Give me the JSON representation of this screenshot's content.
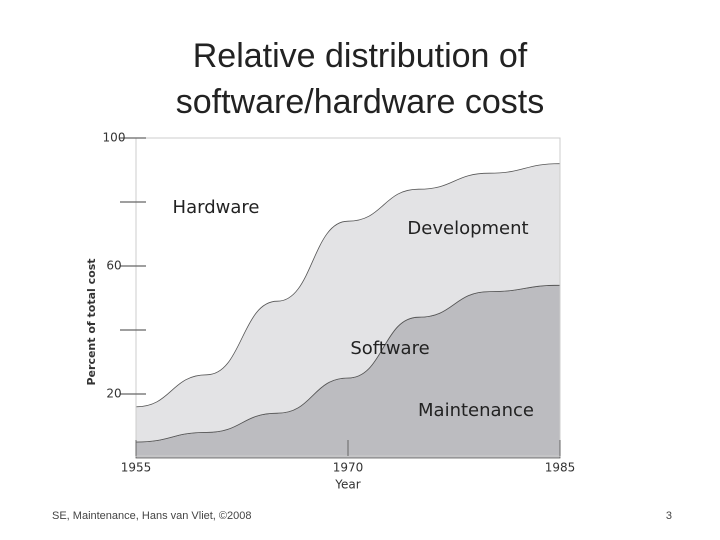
{
  "chart_data": {
    "type": "area",
    "title": [
      "Relative distribution of",
      "software/hardware costs"
    ],
    "x": [
      1955,
      1960,
      1965,
      1970,
      1975,
      1980,
      1985
    ],
    "xlim": [
      1955,
      1985
    ],
    "xticks": [
      1955,
      1970,
      1985
    ],
    "ylim": [
      0,
      100
    ],
    "yticks": [
      100,
      60,
      20
    ],
    "yminorticks": [
      80,
      40
    ],
    "xlabel": "Year",
    "ylabel": "Percent of total cost",
    "stacked": true,
    "series": [
      {
        "name": "Maintenance",
        "color": "#bcbcc0",
        "values": [
          5,
          8,
          14,
          25,
          44,
          52,
          54
        ]
      },
      {
        "name": "Development",
        "color": "#e3e3e5",
        "values": [
          11,
          18,
          35,
          49,
          40,
          37,
          38
        ]
      }
    ],
    "annotations": [
      "Hardware",
      "Software"
    ]
  },
  "footer": {
    "source": "SE, Maintenance, Hans van Vliet, ©2008",
    "page": "3"
  }
}
